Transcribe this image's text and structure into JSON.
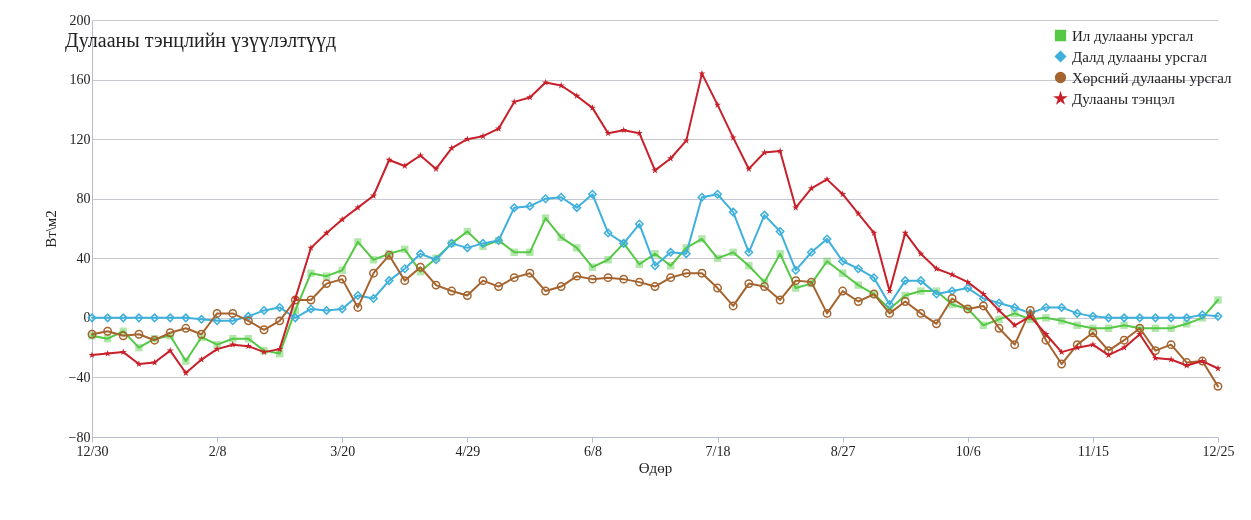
{
  "chart_data": {
    "type": "line",
    "title": "Дулааны тэнцлийн үзүүлэлтүүд",
    "xlabel": "Өдөр",
    "ylabel": "Вт\\м2",
    "categories": [
      "12/30",
      null,
      null,
      null,
      null,
      null,
      null,
      null,
      "2/8",
      null,
      null,
      null,
      null,
      null,
      null,
      null,
      "3/20",
      null,
      null,
      null,
      null,
      null,
      null,
      null,
      "4/29",
      null,
      null,
      null,
      null,
      null,
      null,
      null,
      "6/8",
      null,
      null,
      null,
      null,
      null,
      null,
      null,
      "7/18",
      null,
      null,
      null,
      null,
      null,
      null,
      null,
      "8/27",
      null,
      null,
      null,
      null,
      null,
      null,
      null,
      "10/6",
      null,
      null,
      null,
      null,
      null,
      null,
      null,
      "11/15",
      null,
      null,
      null,
      null,
      null,
      null,
      null,
      "12/25"
    ],
    "ylim": [
      -80,
      200
    ],
    "yticks": [
      -80,
      -40,
      0,
      40,
      80,
      120,
      160,
      200
    ],
    "grid": "y",
    "legend": "top right",
    "line_style": "solid",
    "series": [
      {
        "name": "Ил дулааны урсгал",
        "color": "#55c844",
        "marker": "square",
        "values": [
          -12,
          -14,
          -9,
          -20,
          -14,
          -12,
          -29,
          -13,
          -18,
          -14,
          -14,
          -22,
          -24,
          5,
          30,
          28,
          32,
          51,
          39,
          43,
          46,
          31,
          40,
          50,
          58,
          48,
          52,
          44,
          44,
          67,
          54,
          47,
          34,
          39,
          50,
          36,
          43,
          35,
          47,
          53,
          40,
          44,
          35,
          24,
          43,
          20,
          23,
          38,
          30,
          22,
          16,
          6,
          15,
          18,
          18,
          9,
          6,
          -5,
          -1,
          3,
          -1,
          0,
          -2,
          -5,
          -7,
          -7,
          -5,
          -7,
          -7,
          -7,
          -4,
          0,
          12
        ]
      },
      {
        "name": "Далд дулааны урсгал",
        "color": "#3fb0dc",
        "marker": "diamond",
        "values": [
          0,
          0,
          0,
          0,
          0,
          0,
          0,
          -1,
          -2,
          -2,
          1,
          5,
          7,
          0,
          6,
          5,
          6,
          15,
          13,
          25,
          33,
          43,
          39,
          50,
          47,
          50,
          52,
          74,
          75,
          80,
          81,
          74,
          83,
          57,
          50,
          63,
          35,
          44,
          43,
          81,
          83,
          71,
          44,
          69,
          58,
          32,
          44,
          53,
          38,
          33,
          27,
          9,
          25,
          25,
          16,
          18,
          20,
          13,
          10,
          7,
          3,
          7,
          7,
          3,
          1,
          0,
          0,
          0,
          0,
          0,
          0,
          2,
          1
        ]
      },
      {
        "name": "Хөрсний дулааны урсгал",
        "color": "#a5642e",
        "marker": "circle",
        "values": [
          -11,
          -9,
          -12,
          -11,
          -15,
          -10,
          -7,
          -11,
          3,
          3,
          -2,
          -8,
          -2,
          12,
          12,
          23,
          26,
          7,
          30,
          42,
          25,
          34,
          22,
          18,
          15,
          25,
          21,
          27,
          30,
          18,
          21,
          28,
          26,
          27,
          26,
          24,
          21,
          27,
          30,
          30,
          20,
          8,
          23,
          21,
          12,
          25,
          24,
          3,
          18,
          11,
          16,
          3,
          11,
          3,
          -4,
          13,
          6,
          8,
          -7,
          -18,
          5,
          -15,
          -31,
          -18,
          -10,
          -22,
          -15,
          -7,
          -22,
          -18,
          -30,
          -29,
          -46
        ]
      },
      {
        "name": "Дулааны тэнцэл",
        "color": "#c8202a",
        "marker": "star",
        "values": [
          -25,
          -24,
          -23,
          -31,
          -30,
          -22,
          -37,
          -28,
          -21,
          -18,
          -19,
          -23,
          -21,
          13,
          47,
          57,
          66,
          74,
          82,
          106,
          102,
          109,
          100,
          114,
          120,
          122,
          127,
          145,
          148,
          158,
          156,
          149,
          141,
          124,
          126,
          124,
          99,
          107,
          119,
          164,
          143,
          121,
          100,
          111,
          112,
          74,
          87,
          93,
          83,
          70,
          57,
          18,
          57,
          43,
          33,
          29,
          24,
          16,
          5,
          -5,
          1,
          -11,
          -23,
          -20,
          -18,
          -25,
          -20,
          -11,
          -27,
          -28,
          -32,
          -29,
          -34
        ]
      }
    ]
  }
}
